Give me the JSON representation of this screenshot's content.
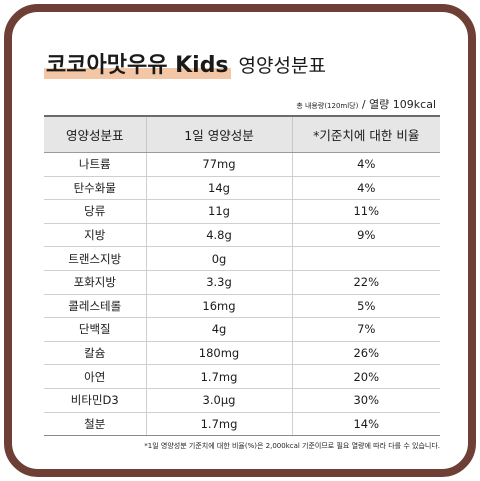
{
  "title": {
    "main": "코코아맛우유 Kids",
    "sub": "영양성분표"
  },
  "serving": {
    "total": "총 내용량(120ml당)",
    "separator": " / ",
    "calories": "열량 109kcal"
  },
  "table": {
    "headers": [
      "영양성분표",
      "1일 영양성분",
      "*기준치에 대한 비율"
    ],
    "rows": [
      {
        "name": "나트륨",
        "amount": "77mg",
        "ratio": "4%"
      },
      {
        "name": "탄수화물",
        "amount": "14g",
        "ratio": "4%"
      },
      {
        "name": "당류",
        "amount": "11g",
        "ratio": "11%"
      },
      {
        "name": "지방",
        "amount": "4.8g",
        "ratio": "9%"
      },
      {
        "name": "트랜스지방",
        "amount": "0g",
        "ratio": ""
      },
      {
        "name": "포화지방",
        "amount": "3.3g",
        "ratio": "22%"
      },
      {
        "name": "콜레스테롤",
        "amount": "16mg",
        "ratio": "5%"
      },
      {
        "name": "단백질",
        "amount": "4g",
        "ratio": "7%"
      },
      {
        "name": "칼슘",
        "amount": "180mg",
        "ratio": "26%"
      },
      {
        "name": "아연",
        "amount": "1.7mg",
        "ratio": "20%"
      },
      {
        "name": "비타민D3",
        "amount": "3.0μg",
        "ratio": "30%"
      },
      {
        "name": "철분",
        "amount": "1.7mg",
        "ratio": "14%"
      }
    ]
  },
  "footnote": "*1일 영양성분 기준치에 대한 비율(%)은 2,000kcal 기준이므로 필요 열량에 따라 다를 수 있습니다.",
  "colors": {
    "frame": "#6e3f35",
    "highlight": "#f3c7a6",
    "header_bg": "#e6e6e6"
  }
}
